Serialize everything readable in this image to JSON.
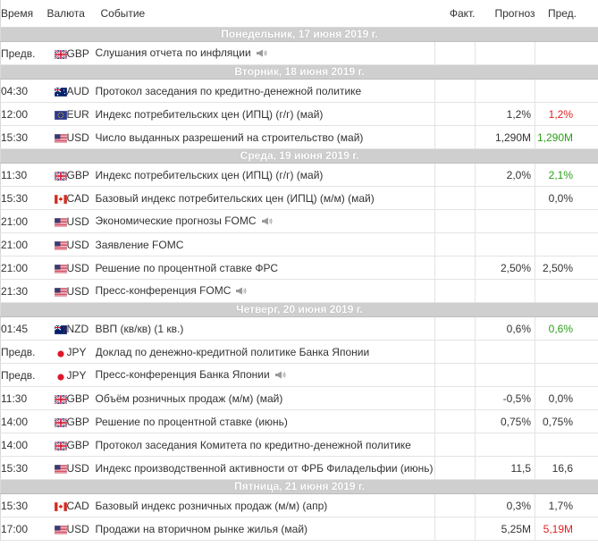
{
  "headers": {
    "time": "Время",
    "currency": "Валюта",
    "event": "Событие",
    "actual": "Факт.",
    "forecast": "Прогноз",
    "previous": "Пред."
  },
  "days": [
    {
      "label": "Понедельник, 17 июня 2019 г.",
      "events": [
        {
          "time": "Предв.",
          "flag": "uk-flag-icon",
          "currency": "GBP",
          "event": "Слушания отчета по инфляции",
          "speech": true,
          "actual": "",
          "forecast": "",
          "previous": "",
          "previous_status": ""
        }
      ]
    },
    {
      "label": "Вторник, 18 июня 2019 г.",
      "events": [
        {
          "time": "04:30",
          "flag": "au-flag-icon",
          "currency": "AUD",
          "event": "Протокол заседания по кредитно-денежной политике",
          "speech": false,
          "actual": "",
          "forecast": "",
          "previous": "",
          "previous_status": ""
        },
        {
          "time": "12:00",
          "flag": "eu-flag-icon",
          "currency": "EUR",
          "event": "Индекс потребительских цен (ИПЦ) (г/г) (май)",
          "speech": false,
          "actual": "",
          "forecast": "1,2%",
          "previous": "1,2%",
          "previous_status": "bad"
        },
        {
          "time": "15:30",
          "flag": "us-flag-icon",
          "currency": "USD",
          "event": "Число выданных разрешений на строительство (май)",
          "speech": false,
          "actual": "",
          "forecast": "1,290M",
          "previous": "1,290M",
          "previous_status": "good"
        }
      ]
    },
    {
      "label": "Среда, 19 июня 2019 г.",
      "events": [
        {
          "time": "11:30",
          "flag": "uk-flag-icon",
          "currency": "GBP",
          "event": "Индекс потребительских цен (ИПЦ) (г/г) (май)",
          "speech": false,
          "actual": "",
          "forecast": "2,0%",
          "previous": "2,1%",
          "previous_status": "good"
        },
        {
          "time": "15:30",
          "flag": "ca-flag-icon",
          "currency": "CAD",
          "event": "Базовый индекс потребительских цен (ИПЦ) (м/м) (май)",
          "speech": false,
          "actual": "",
          "forecast": "",
          "previous": "0,0%",
          "previous_status": ""
        },
        {
          "time": "21:00",
          "flag": "us-flag-icon",
          "currency": "USD",
          "event": "Экономические прогнозы FOMC",
          "speech": true,
          "actual": "",
          "forecast": "",
          "previous": "",
          "previous_status": ""
        },
        {
          "time": "21:00",
          "flag": "us-flag-icon",
          "currency": "USD",
          "event": "Заявление FOMC",
          "speech": false,
          "actual": "",
          "forecast": "",
          "previous": "",
          "previous_status": ""
        },
        {
          "time": "21:00",
          "flag": "us-flag-icon",
          "currency": "USD",
          "event": "Решение по процентной ставке ФРС",
          "speech": false,
          "actual": "",
          "forecast": "2,50%",
          "previous": "2,50%",
          "previous_status": ""
        },
        {
          "time": "21:30",
          "flag": "us-flag-icon",
          "currency": "USD",
          "event": "Пресс-конференция FOMC",
          "speech": true,
          "actual": "",
          "forecast": "",
          "previous": "",
          "previous_status": ""
        }
      ]
    },
    {
      "label": "Четверг, 20 июня 2019 г.",
      "events": [
        {
          "time": "01:45",
          "flag": "nz-flag-icon",
          "currency": "NZD",
          "event": "ВВП (кв/кв) (1 кв.)",
          "speech": false,
          "actual": "",
          "forecast": "0,6%",
          "previous": "0,6%",
          "previous_status": "good"
        },
        {
          "time": "Предв.",
          "flag": "jp-flag-icon",
          "currency": "JPY",
          "event": "Доклад по денежно-кредитной политике Банка Японии",
          "speech": false,
          "actual": "",
          "forecast": "",
          "previous": "",
          "previous_status": ""
        },
        {
          "time": "Предв.",
          "flag": "jp-flag-icon",
          "currency": "JPY",
          "event": "Пресс-конференция Банка Японии",
          "speech": true,
          "actual": "",
          "forecast": "",
          "previous": "",
          "previous_status": ""
        },
        {
          "time": "11:30",
          "flag": "uk-flag-icon",
          "currency": "GBP",
          "event": "Объём розничных продаж (м/м) (май)",
          "speech": false,
          "actual": "",
          "forecast": "-0,5%",
          "previous": "0,0%",
          "previous_status": ""
        },
        {
          "time": "14:00",
          "flag": "uk-flag-icon",
          "currency": "GBP",
          "event": "Решение по процентной ставке (июнь)",
          "speech": false,
          "actual": "",
          "forecast": "0,75%",
          "previous": "0,75%",
          "previous_status": ""
        },
        {
          "time": "14:00",
          "flag": "uk-flag-icon",
          "currency": "GBP",
          "event": "Протокол заседания Комитета по кредитно-денежной политике",
          "speech": false,
          "actual": "",
          "forecast": "",
          "previous": "",
          "previous_status": ""
        },
        {
          "time": "15:30",
          "flag": "us-flag-icon",
          "currency": "USD",
          "event": "Индекс производственной активности от ФРБ Филадельфии (июнь)",
          "speech": false,
          "actual": "",
          "forecast": "11,5",
          "previous": "16,6",
          "previous_status": ""
        }
      ]
    },
    {
      "label": "Пятница, 21 июня 2019 г.",
      "events": [
        {
          "time": "15:30",
          "flag": "ca-flag-icon",
          "currency": "CAD",
          "event": "Базовый индекс розничных продаж (м/м) (апр)",
          "speech": false,
          "actual": "",
          "forecast": "0,3%",
          "previous": "1,7%",
          "previous_status": ""
        },
        {
          "time": "17:00",
          "flag": "us-flag-icon",
          "currency": "USD",
          "event": "Продажи на вторичном рынке жилья (май)",
          "speech": false,
          "actual": "",
          "forecast": "5,25M",
          "previous": "5,19M",
          "previous_status": "bad"
        }
      ]
    }
  ],
  "colors": {
    "good": "#2a9f18",
    "bad": "#e31f1f",
    "day_header_bg": "#cfcfcf"
  }
}
